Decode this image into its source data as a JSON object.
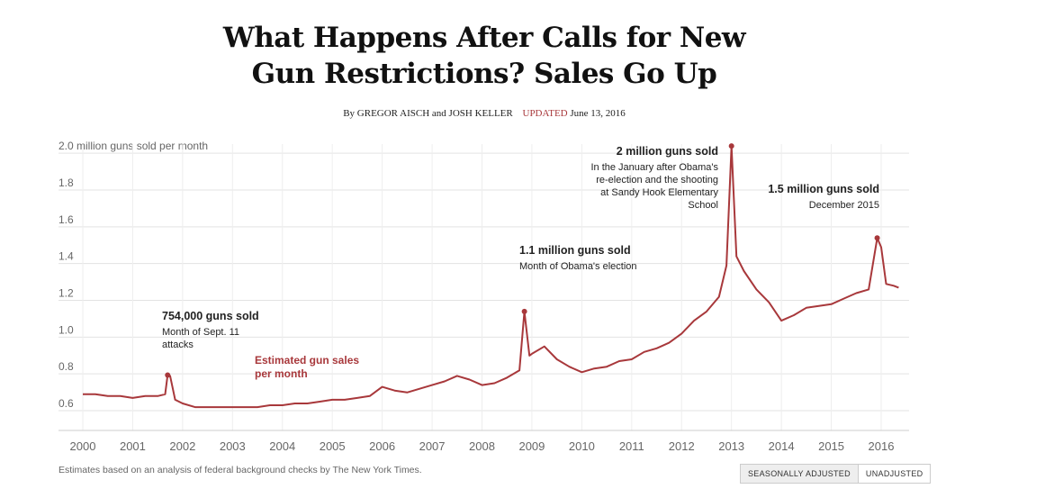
{
  "header": {
    "title_line1": "What Happens After Calls for New",
    "title_line2": "Gun Restrictions? Sales Go Up",
    "byline": "By GREGOR AISCH and JOSH KELLER",
    "updated_label": "UPDATED",
    "updated_date": "June 13, 2016"
  },
  "footer": {
    "note": "Estimates based on an analysis of federal background checks by The New York Times.",
    "toggle_seasonal": "SEASONALLY ADJUSTED",
    "toggle_unadjusted": "UNADJUSTED"
  },
  "colors": {
    "line": "#a8383b",
    "grid": "#e3e3e3",
    "axis_text": "#666666"
  },
  "chart_data": {
    "type": "line",
    "ylabel": "2.0 million guns sold per month",
    "ylim": [
      0.5,
      2.05
    ],
    "xlim": [
      2000,
      2016.5
    ],
    "y_ticks": [
      0.6,
      0.8,
      1.0,
      1.2,
      1.4,
      1.6,
      1.8
    ],
    "y_tick_labels": [
      "0.6",
      "0.8",
      "1.0",
      "1.2",
      "1.4",
      "1.6",
      "1.8"
    ],
    "x_ticks": [
      2000,
      2001,
      2002,
      2003,
      2004,
      2005,
      2006,
      2007,
      2008,
      2009,
      2010,
      2011,
      2012,
      2013,
      2014,
      2015,
      2016
    ],
    "x_tick_labels": [
      "2000",
      "2001",
      "2002",
      "2003",
      "2004",
      "2005",
      "2006",
      "2007",
      "2008",
      "2009",
      "2010",
      "2011",
      "2012",
      "2013",
      "2014",
      "2015",
      "2016"
    ],
    "grid": true,
    "series": [
      {
        "name": "Estimated gun sales per month",
        "points": [
          [
            2000.0,
            0.65
          ],
          [
            2000.25,
            0.65
          ],
          [
            2000.5,
            0.64
          ],
          [
            2000.75,
            0.64
          ],
          [
            2001.0,
            0.63
          ],
          [
            2001.25,
            0.64
          ],
          [
            2001.5,
            0.64
          ],
          [
            2001.65,
            0.65
          ],
          [
            2001.7,
            0.754
          ],
          [
            2001.75,
            0.75
          ],
          [
            2001.85,
            0.62
          ],
          [
            2002.0,
            0.6
          ],
          [
            2002.25,
            0.58
          ],
          [
            2002.5,
            0.58
          ],
          [
            2002.75,
            0.58
          ],
          [
            2003.0,
            0.58
          ],
          [
            2003.25,
            0.58
          ],
          [
            2003.5,
            0.58
          ],
          [
            2003.75,
            0.59
          ],
          [
            2004.0,
            0.59
          ],
          [
            2004.25,
            0.6
          ],
          [
            2004.5,
            0.6
          ],
          [
            2004.75,
            0.61
          ],
          [
            2005.0,
            0.62
          ],
          [
            2005.25,
            0.62
          ],
          [
            2005.5,
            0.63
          ],
          [
            2005.75,
            0.64
          ],
          [
            2006.0,
            0.69
          ],
          [
            2006.25,
            0.67
          ],
          [
            2006.5,
            0.66
          ],
          [
            2006.75,
            0.68
          ],
          [
            2007.0,
            0.7
          ],
          [
            2007.25,
            0.72
          ],
          [
            2007.5,
            0.75
          ],
          [
            2007.75,
            0.73
          ],
          [
            2008.0,
            0.7
          ],
          [
            2008.25,
            0.71
          ],
          [
            2008.5,
            0.74
          ],
          [
            2008.75,
            0.78
          ],
          [
            2008.85,
            1.1
          ],
          [
            2008.95,
            0.86
          ],
          [
            2009.0,
            0.87
          ],
          [
            2009.25,
            0.91
          ],
          [
            2009.5,
            0.84
          ],
          [
            2009.75,
            0.8
          ],
          [
            2010.0,
            0.77
          ],
          [
            2010.25,
            0.79
          ],
          [
            2010.5,
            0.8
          ],
          [
            2010.75,
            0.83
          ],
          [
            2011.0,
            0.84
          ],
          [
            2011.25,
            0.88
          ],
          [
            2011.5,
            0.9
          ],
          [
            2011.75,
            0.93
          ],
          [
            2012.0,
            0.98
          ],
          [
            2012.25,
            1.05
          ],
          [
            2012.5,
            1.1
          ],
          [
            2012.75,
            1.18
          ],
          [
            2012.9,
            1.35
          ],
          [
            2013.0,
            2.0
          ],
          [
            2013.1,
            1.4
          ],
          [
            2013.25,
            1.32
          ],
          [
            2013.5,
            1.22
          ],
          [
            2013.75,
            1.15
          ],
          [
            2014.0,
            1.05
          ],
          [
            2014.25,
            1.08
          ],
          [
            2014.5,
            1.12
          ],
          [
            2014.75,
            1.13
          ],
          [
            2015.0,
            1.14
          ],
          [
            2015.25,
            1.17
          ],
          [
            2015.5,
            1.2
          ],
          [
            2015.75,
            1.22
          ],
          [
            2015.92,
            1.5
          ],
          [
            2016.0,
            1.45
          ],
          [
            2016.1,
            1.25
          ],
          [
            2016.25,
            1.24
          ],
          [
            2016.35,
            1.23
          ]
        ]
      }
    ],
    "annotations": [
      {
        "id": "sept11",
        "x": 2001.7,
        "y": 0.754,
        "title": "754,000 guns sold",
        "text": [
          "Month of Sept. 11",
          "attacks"
        ],
        "align": "left"
      },
      {
        "id": "obama-election",
        "x": 2008.85,
        "y": 1.1,
        "title": "1.1 million guns sold",
        "text": [
          "Month of Obama's election"
        ],
        "align": "left"
      },
      {
        "id": "sandy-hook",
        "x": 2013.0,
        "y": 2.0,
        "title": "2 million guns sold",
        "text": [
          "In the January after Obama's",
          "re-election and the shooting",
          "at Sandy Hook Elementary",
          "School"
        ],
        "align": "right"
      },
      {
        "id": "dec2015",
        "x": 2015.92,
        "y": 1.5,
        "title": "1.5 million guns sold",
        "text": [
          "December 2015"
        ],
        "align": "right"
      }
    ],
    "series_label": [
      "Estimated gun sales",
      "per month"
    ]
  }
}
